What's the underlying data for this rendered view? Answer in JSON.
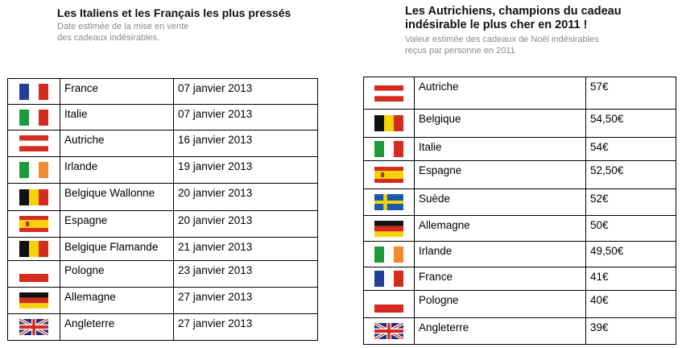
{
  "left": {
    "title": "Les Italiens et les Français les plus pressés",
    "subtitle_lines": [
      "Date estimée de la mise en vente",
      "des cadeaux indésirables."
    ],
    "rows": [
      {
        "flag": "france-flag",
        "country": "France",
        "value": "07 janvier 2013"
      },
      {
        "flag": "italy-flag",
        "country": "Italie",
        "value": "07 janvier 2013"
      },
      {
        "flag": "austria-flag",
        "country": "Autriche",
        "value": "16 janvier 2013"
      },
      {
        "flag": "ireland-flag",
        "country": "Irlande",
        "value": "19 janvier 2013"
      },
      {
        "flag": "belgium-flag",
        "country": "Belgique Wallonne",
        "value": "20 janvier 2013"
      },
      {
        "flag": "spain-flag",
        "country": "Espagne",
        "value": "20 janvier 2013"
      },
      {
        "flag": "belgium-flag",
        "country": "Belgique Flamande",
        "value": "21 janvier 2013"
      },
      {
        "flag": "poland-flag",
        "country": "Pologne",
        "value": "23 janvier 2013"
      },
      {
        "flag": "germany-flag",
        "country": "Allemagne",
        "value": "27 janvier 2013"
      },
      {
        "flag": "uk-flag",
        "country": "Angleterre",
        "value": "27 janvier 2013"
      }
    ]
  },
  "right": {
    "title_lines": [
      "Les Autrichiens, champions du cadeau",
      "indésirable le plus cher en 2011 !"
    ],
    "subtitle_lines": [
      "Valeur estimée des cadeaux de Noël indésirables",
      "reçus par personne en 2011"
    ],
    "rows": [
      {
        "flag": "austria-flag",
        "country": "Autriche",
        "value": "57€"
      },
      {
        "flag": "belgium-flag",
        "country": "Belgique",
        "value": "54,50€"
      },
      {
        "flag": "italy-flag",
        "country": "Italie",
        "value": "54€"
      },
      {
        "flag": "spain-flag",
        "country": "Espagne",
        "value": "52,50€"
      },
      {
        "flag": "sweden-flag",
        "country": "Suède",
        "value": "52€"
      },
      {
        "flag": "germany-flag",
        "country": "Allemagne",
        "value": "50€"
      },
      {
        "flag": "ireland-flag",
        "country": "Irlande",
        "value": "49,50€"
      },
      {
        "flag": "france-flag",
        "country": "France",
        "value": "41€"
      },
      {
        "flag": "poland-flag",
        "country": "Pologne",
        "value": "40€"
      },
      {
        "flag": "uk-flag",
        "country": "Angleterre",
        "value": "39€"
      }
    ]
  },
  "colors": {
    "border": "#000000",
    "subtitle": "#8a8a8a",
    "red": "#d52b1e",
    "blue": "#1f3f99",
    "green": "#1f9a3a",
    "yellow": "#f5d20a",
    "orange": "#f28a30"
  }
}
